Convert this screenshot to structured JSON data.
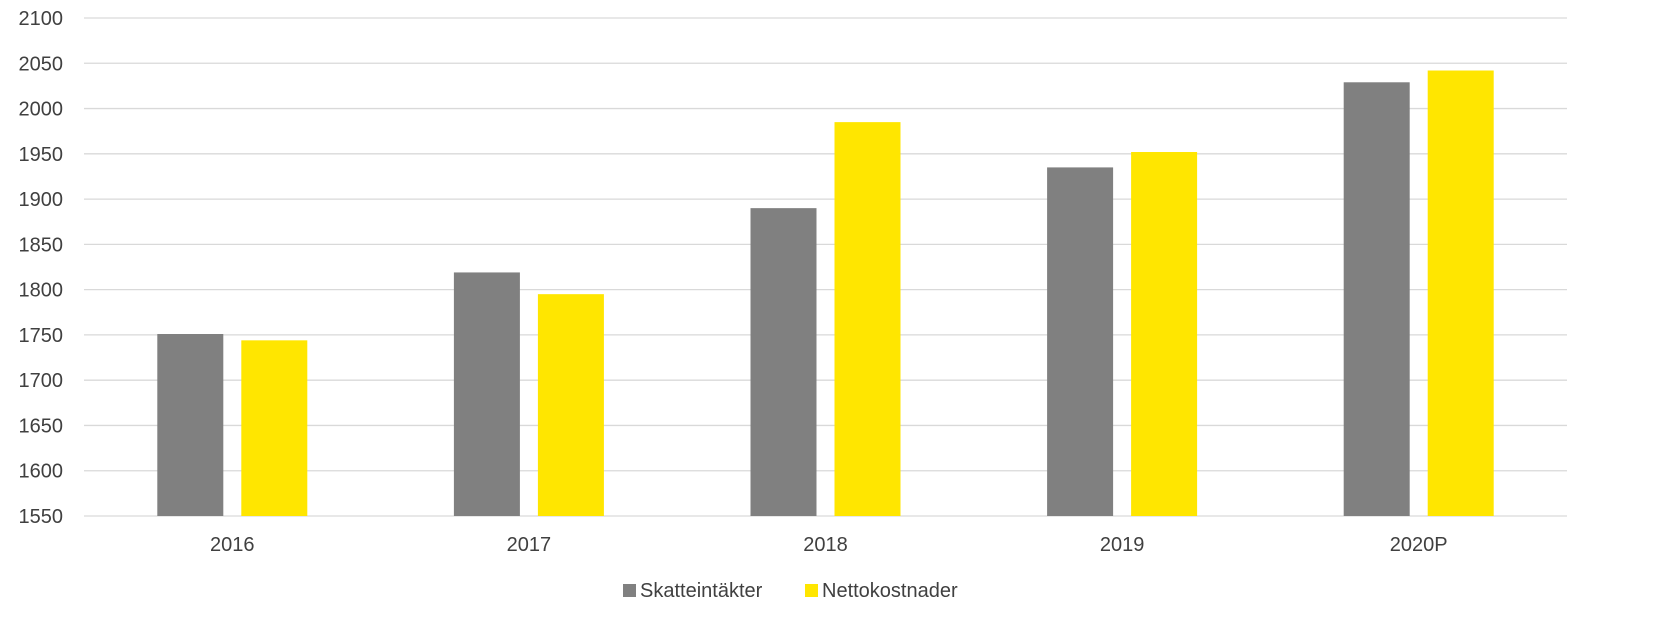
{
  "chart_data": {
    "type": "bar",
    "title": "",
    "xlabel": "",
    "ylabel": "",
    "categories": [
      "2016",
      "2017",
      "2018",
      "2019",
      "2020P"
    ],
    "ylim": [
      1550,
      2100
    ],
    "yticks": [
      1550,
      1600,
      1650,
      1700,
      1750,
      1800,
      1850,
      1900,
      1950,
      2000,
      2050,
      2100
    ],
    "grid": true,
    "legend_position": "bottom-center",
    "series": [
      {
        "name": "Skatteintäkter",
        "color": "#808080",
        "values": [
          1751,
          1819,
          1890,
          1935,
          2029
        ]
      },
      {
        "name": "Nettokostnader",
        "color": "#ffe600",
        "values": [
          1744,
          1795,
          1985,
          1952,
          2042
        ]
      }
    ]
  }
}
